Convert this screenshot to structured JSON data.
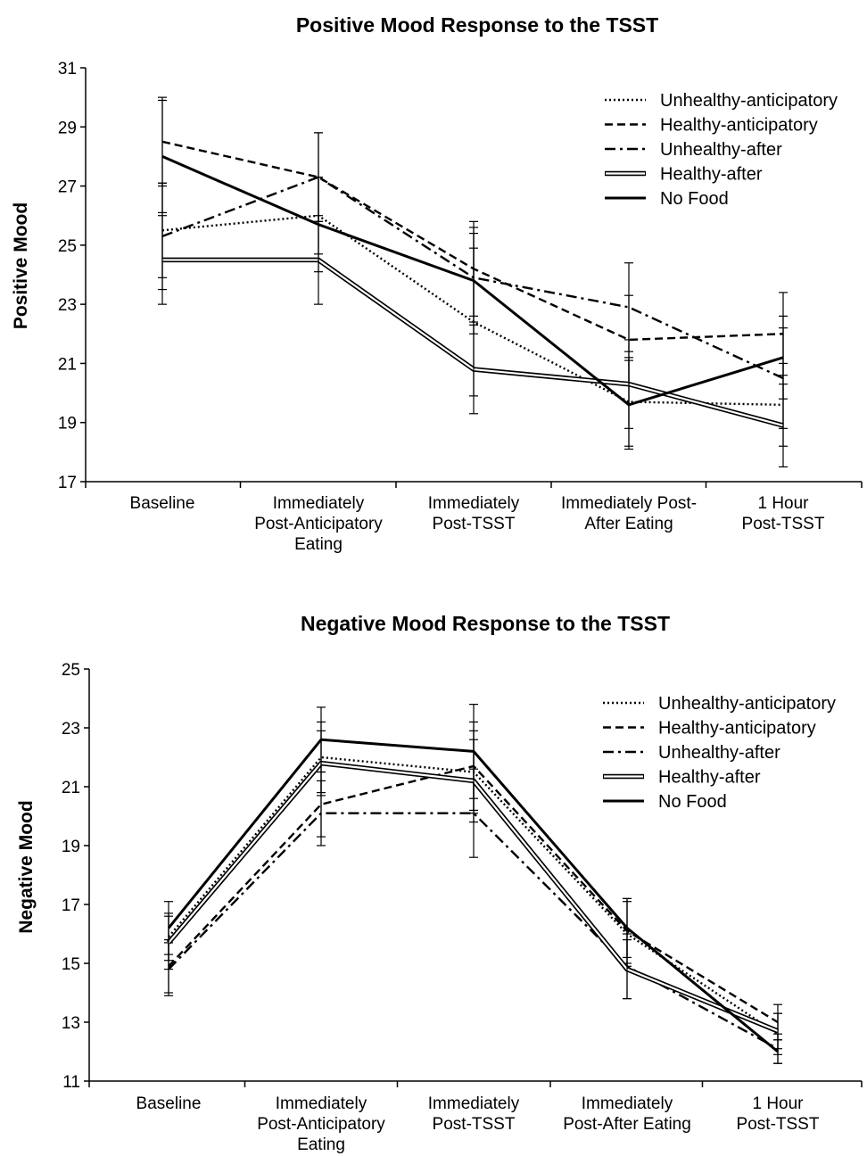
{
  "chart_data": [
    {
      "type": "line",
      "title": "Positive Mood Response to the TSST",
      "xlabel": "",
      "ylabel": "Positive Mood",
      "ylim": [
        17,
        31
      ],
      "yticks": [
        17,
        19,
        21,
        23,
        25,
        27,
        29,
        31
      ],
      "categories": [
        [
          "Baseline"
        ],
        [
          "Immediately",
          "Post-Anticipatory",
          "Eating"
        ],
        [
          "Immediately",
          "Post-TSST"
        ],
        [
          "Immediately Post-",
          "After Eating"
        ],
        [
          "1 Hour",
          "Post-TSST"
        ]
      ],
      "legend_position": "top-right",
      "series": [
        {
          "name": "Unhealthy-anticipatory",
          "style": "dotted",
          "values": [
            25.5,
            26.0,
            22.4,
            19.7,
            19.6
          ],
          "errors": [
            1.6,
            1.3,
            2.5,
            1.5,
            1.4
          ]
        },
        {
          "name": "Healthy-anticipatory",
          "style": "dashed",
          "values": [
            28.5,
            27.3,
            24.2,
            21.8,
            22.0
          ],
          "errors": [
            1.5,
            1.5,
            1.6,
            1.5,
            1.4
          ]
        },
        {
          "name": "Unhealthy-after",
          "style": "dashdot",
          "values": [
            25.3,
            27.3,
            23.9,
            22.9,
            20.5
          ],
          "errors": [
            1.8,
            1.5,
            1.5,
            1.5,
            1.7
          ]
        },
        {
          "name": "Healthy-after",
          "style": "double",
          "values": [
            24.5,
            24.5,
            20.8,
            20.3,
            18.9
          ],
          "errors": [
            1.5,
            1.5,
            1.5,
            1.5,
            1.4
          ]
        },
        {
          "name": "No Food",
          "style": "solid",
          "values": [
            28.0,
            25.7,
            23.8,
            19.6,
            21.2
          ],
          "errors": [
            1.9,
            1.6,
            1.8,
            1.5,
            1.4
          ]
        }
      ]
    },
    {
      "type": "line",
      "title": "Negative Mood Response to the TSST",
      "xlabel": "",
      "ylabel": "Negative Mood",
      "ylim": [
        11,
        25
      ],
      "yticks": [
        11,
        13,
        15,
        17,
        19,
        21,
        23,
        25
      ],
      "categories": [
        [
          "Baseline"
        ],
        [
          "Immediately",
          "Post-Anticipatory",
          "Eating"
        ],
        [
          "Immediately",
          "Post-TSST"
        ],
        [
          "Immediately",
          "Post-After Eating"
        ],
        [
          "1 Hour",
          "Post-TSST"
        ]
      ],
      "legend_position": "top-right",
      "series": [
        {
          "name": "Unhealthy-anticipatory",
          "style": "dotted",
          "values": [
            15.9,
            22.0,
            21.5,
            16.0,
            12.6
          ],
          "errors": [
            0.8,
            1.2,
            1.4,
            1.1,
            0.7
          ]
        },
        {
          "name": "Healthy-anticipatory",
          "style": "dashed",
          "values": [
            14.9,
            20.4,
            21.7,
            16.1,
            13.0
          ],
          "errors": [
            0.9,
            1.1,
            1.5,
            1.1,
            0.6
          ]
        },
        {
          "name": "Unhealthy-after",
          "style": "dashdot",
          "values": [
            14.8,
            20.1,
            20.1,
            14.9,
            12.1
          ],
          "errors": [
            0.9,
            1.1,
            1.5,
            1.1,
            0.5
          ]
        },
        {
          "name": "Healthy-after",
          "style": "double",
          "values": [
            15.7,
            21.8,
            21.2,
            14.8,
            12.7
          ],
          "errors": [
            0.9,
            1.1,
            1.4,
            1.0,
            0.6
          ]
        },
        {
          "name": "No Food",
          "style": "solid",
          "values": [
            16.2,
            22.6,
            22.2,
            16.2,
            12.0
          ],
          "errors": [
            0.9,
            1.1,
            1.6,
            1.0,
            0.4
          ]
        }
      ]
    }
  ]
}
